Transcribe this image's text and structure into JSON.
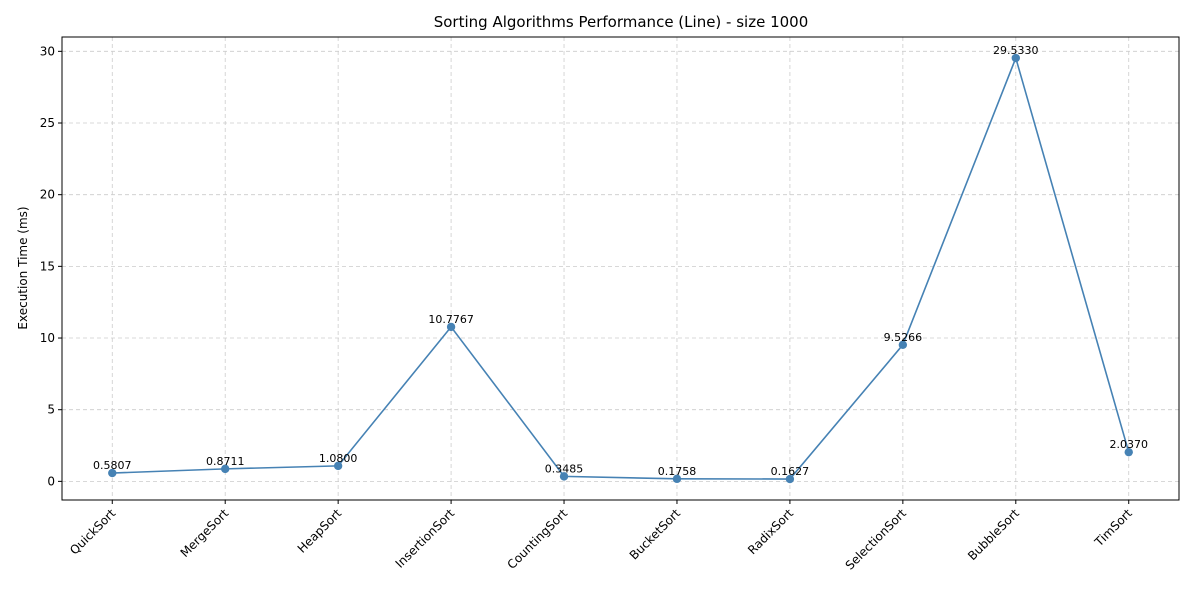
{
  "chart_data": {
    "type": "line",
    "title": "Sorting Algorithms Performance (Line) - size 1000",
    "xlabel": "",
    "ylabel": "Execution Time (ms)",
    "categories": [
      "QuickSort",
      "MergeSort",
      "HeapSort",
      "InsertionSort",
      "CountingSort",
      "BucketSort",
      "RadixSort",
      "SelectionSort",
      "BubbleSort",
      "TimSort"
    ],
    "series": [
      {
        "values": [
          0.5807,
          0.8711,
          1.08,
          10.7767,
          0.3485,
          0.1758,
          0.1627,
          9.5266,
          29.533,
          2.037
        ]
      }
    ],
    "data_labels": [
      "0.5807",
      "0.8711",
      "1.0800",
      "10.7767",
      "0.3485",
      "0.1758",
      "0.1627",
      "9.5266",
      "29.5330",
      "2.0370"
    ],
    "ylim": [
      -1.3,
      31
    ],
    "yticks": [
      0,
      5,
      10,
      15,
      20,
      25,
      30
    ],
    "grid": true,
    "line_color": "#4682b4"
  }
}
